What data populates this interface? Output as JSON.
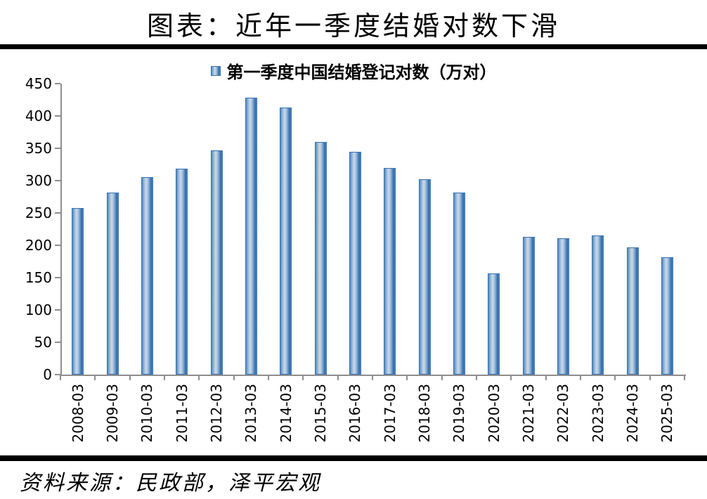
{
  "page": {
    "title": "图表：近年一季度结婚对数下滑",
    "source_note": "资料来源：民政部，泽平宏观"
  },
  "legend": {
    "label": "第一季度中国结婚登记对数（万对）",
    "swatch_color_center": "#c3d4e8",
    "swatch_color_edge": "#2d69a8"
  },
  "chart_data": {
    "type": "bar",
    "title": "第一季度中国结婚登记对数（万对）",
    "categories": [
      "2008-03",
      "2009-03",
      "2010-03",
      "2011-03",
      "2012-03",
      "2013-03",
      "2014-03",
      "2015-03",
      "2016-03",
      "2017-03",
      "2018-03",
      "2019-03",
      "2020-03",
      "2021-03",
      "2022-03",
      "2023-03",
      "2024-03",
      "2025-03"
    ],
    "values": [
      258,
      282,
      305,
      318,
      347,
      428,
      413,
      360,
      345,
      320,
      302,
      281,
      156,
      213,
      211,
      215,
      197,
      181
    ],
    "xlabel": "",
    "ylabel": "",
    "ylim": [
      0,
      450
    ],
    "yticks": [
      0,
      50,
      100,
      150,
      200,
      250,
      300,
      350,
      400,
      450
    ],
    "grid": false,
    "legend_position": "top-center",
    "bar_color_edge": "#2d69a8",
    "bar_color_center": "#c3d4e8",
    "axis_color": "#8e8e8e",
    "text_color": "#000000"
  }
}
